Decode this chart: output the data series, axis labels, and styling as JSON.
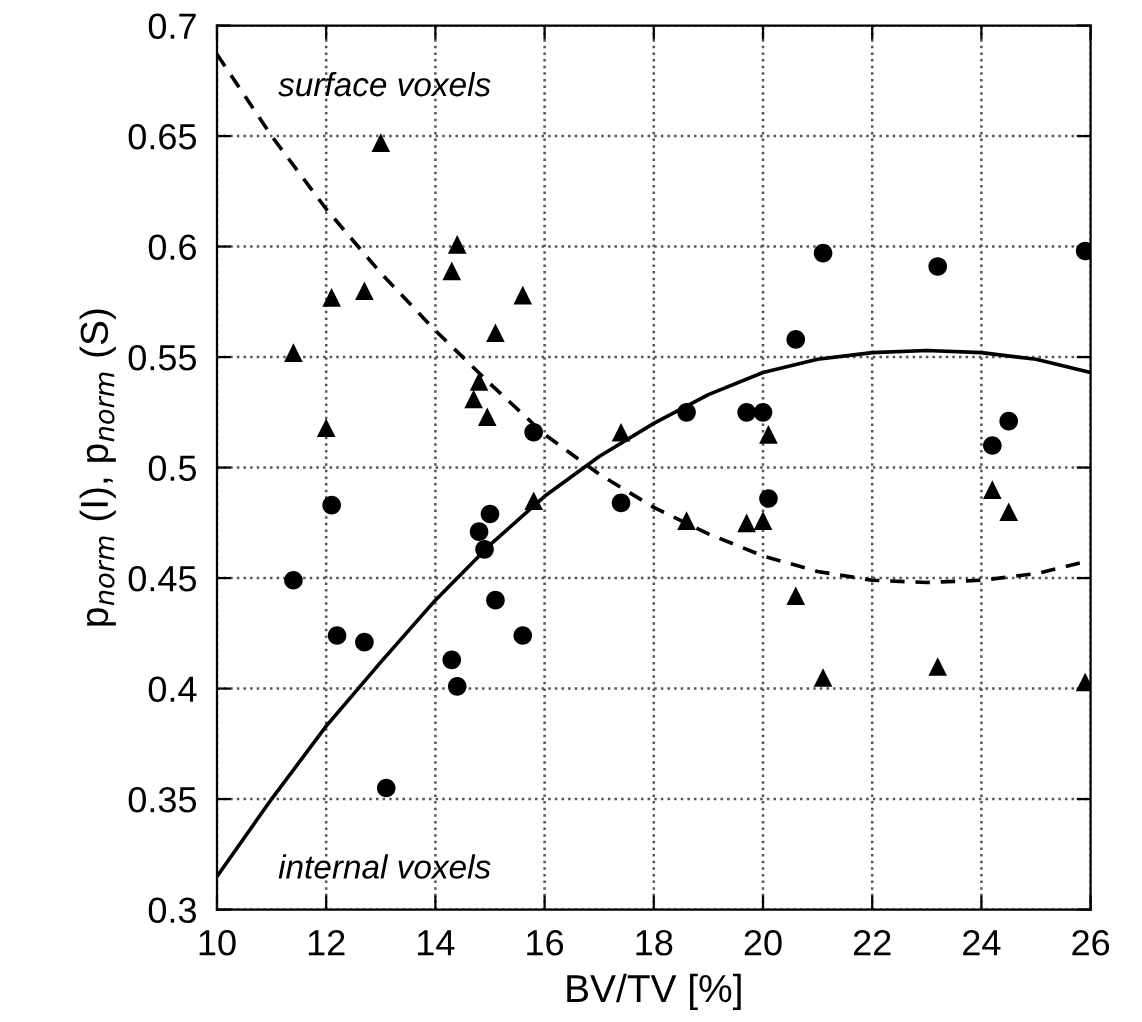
{
  "chart_data": {
    "type": "scatter",
    "xlabel": "BV/TV [%]",
    "ylabel": "p$_{norm}$ (I), p$_{norm}$ (S)",
    "xlim": [
      10,
      26
    ],
    "xticks": [
      10,
      12,
      14,
      16,
      18,
      20,
      22,
      24,
      26
    ],
    "ylim": [
      0.3,
      0.7
    ],
    "yticks": [
      0.3,
      0.35,
      0.4,
      0.45,
      0.5,
      0.55,
      0.6,
      0.65,
      0.7
    ],
    "grid": true,
    "series": [
      {
        "marker": "circle",
        "color": "#000000",
        "x": [
          11.4,
          12.1,
          12.2,
          12.7,
          13.1,
          14.3,
          14.4,
          14.8,
          14.9,
          15.0,
          15.1,
          15.6,
          15.8,
          17.4,
          18.6,
          19.7,
          20.0,
          20.1,
          20.6,
          21.1,
          23.2,
          24.2,
          24.5,
          25.9
        ],
        "values": [
          0.449,
          0.483,
          0.424,
          0.421,
          0.355,
          0.413,
          0.401,
          0.471,
          0.463,
          0.479,
          0.44,
          0.424,
          0.516,
          0.484,
          0.525,
          0.525,
          0.525,
          0.486,
          0.558,
          0.597,
          0.591,
          0.51,
          0.521,
          0.598
        ]
      },
      {
        "marker": "triangle",
        "color": "#000000",
        "x": [
          11.4,
          12.0,
          12.1,
          12.7,
          13.0,
          14.3,
          14.4,
          14.7,
          14.8,
          14.95,
          15.1,
          15.6,
          15.8,
          17.4,
          18.6,
          19.7,
          20.0,
          20.1,
          20.6,
          21.1,
          23.2,
          24.2,
          24.5,
          25.9
        ],
        "values": [
          0.552,
          0.518,
          0.577,
          0.58,
          0.647,
          0.589,
          0.601,
          0.531,
          0.539,
          0.523,
          0.561,
          0.578,
          0.485,
          0.516,
          0.476,
          0.475,
          0.476,
          0.515,
          0.442,
          0.405,
          0.41,
          0.49,
          0.48,
          0.403
        ]
      },
      {
        "type": "line",
        "line_style": "solid",
        "color": "#000000",
        "x": [
          10,
          11,
          12,
          13,
          14,
          15,
          16,
          17,
          18,
          19,
          20,
          21,
          22,
          23,
          24,
          25,
          26
        ],
        "values": [
          0.315,
          0.35,
          0.383,
          0.412,
          0.44,
          0.465,
          0.487,
          0.505,
          0.52,
          0.533,
          0.543,
          0.549,
          0.552,
          0.553,
          0.552,
          0.549,
          0.543
        ]
      },
      {
        "type": "line",
        "line_style": "dashed",
        "color": "#000000",
        "x": [
          10,
          11,
          12,
          13,
          14,
          15,
          16,
          17,
          18,
          19,
          20,
          21,
          22,
          23,
          24,
          25,
          26
        ],
        "values": [
          0.687,
          0.65,
          0.617,
          0.588,
          0.562,
          0.538,
          0.515,
          0.497,
          0.482,
          0.47,
          0.46,
          0.453,
          0.449,
          0.448,
          0.449,
          0.452,
          0.458
        ]
      }
    ],
    "annotations": [
      "surface voxels",
      "internal voxels"
    ]
  }
}
